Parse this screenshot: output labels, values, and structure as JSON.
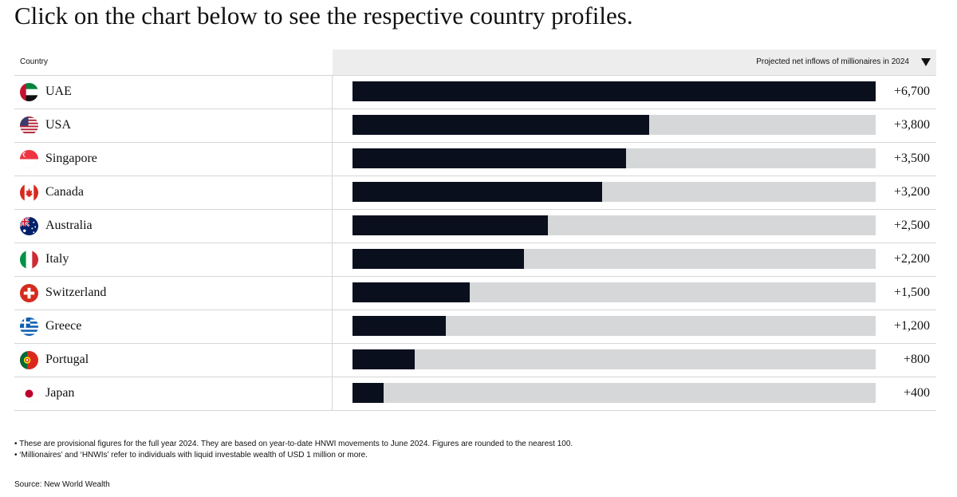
{
  "heading": "Click on the chart below to see the respective country profiles.",
  "table_header": {
    "country_label": "Country",
    "metric_label": "Projected net inflows of millionaires in 2024",
    "sort_icon": "triangle-down-icon"
  },
  "colors": {
    "bar": "#0a0f1e",
    "track": "#d6d7d9",
    "header_bg": "#ededed"
  },
  "chart_data": {
    "type": "bar",
    "orientation": "horizontal",
    "categories": [
      "UAE",
      "USA",
      "Singapore",
      "Canada",
      "Australia",
      "Italy",
      "Switzerland",
      "Greece",
      "Portugal",
      "Japan"
    ],
    "values": [
      6700,
      3800,
      3500,
      3200,
      2500,
      2200,
      1500,
      1200,
      800,
      400
    ],
    "value_labels": [
      "+6,700",
      "+3,800",
      "+3,500",
      "+3,200",
      "+2,500",
      "+2,200",
      "+1,500",
      "+1,200",
      "+800",
      "+400"
    ],
    "flags": [
      "uae-flag-icon",
      "usa-flag-icon",
      "singapore-flag-icon",
      "canada-flag-icon",
      "australia-flag-icon",
      "italy-flag-icon",
      "switzerland-flag-icon",
      "greece-flag-icon",
      "portugal-flag-icon",
      "japan-flag-icon"
    ],
    "xlim": [
      0,
      6700
    ],
    "title": "",
    "xlabel": "Projected net inflows of millionaires in 2024",
    "ylabel": "Country",
    "grid": false,
    "legend": "none"
  },
  "notes": [
    "These are provisional figures for the full year 2024. They are based on year-to-date HNWI movements to June 2024. Figures are rounded to the nearest 100.",
    "‘Millionaires’ and ‘HNWIs’ refer to individuals with liquid investable wealth of USD 1 million or more."
  ],
  "source": "Source: New World Wealth"
}
